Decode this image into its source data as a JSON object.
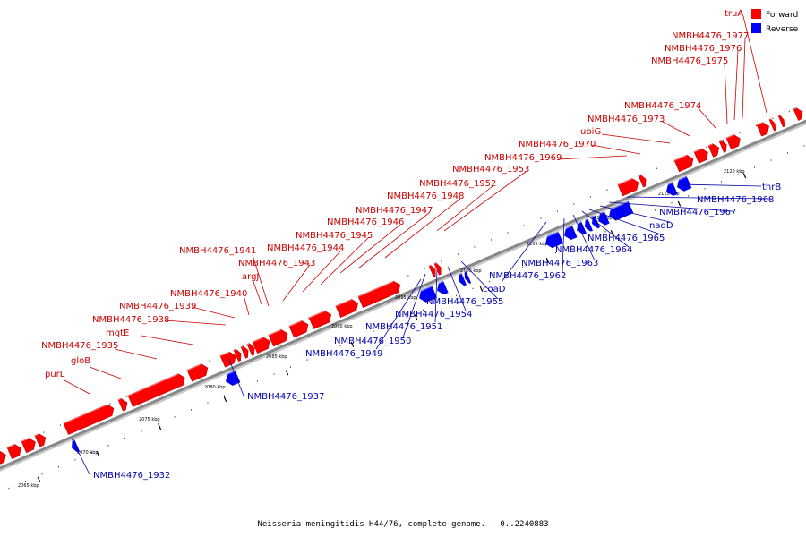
{
  "title": "Neisseria meningitidis H44/76, complete genome. - 0..2240883",
  "legend": [
    {
      "label": "Forward",
      "color": "#ff0000"
    },
    {
      "label": "Reverse",
      "color": "#0000ff"
    }
  ],
  "colors": {
    "forward": "#ff0000",
    "reverse": "#0000ff",
    "backbone": "#888888"
  },
  "ticks": [
    {
      "label": "2065 kbp"
    },
    {
      "label": "2070 kbp"
    },
    {
      "label": "2075 kbp"
    },
    {
      "label": "2080 kbp"
    },
    {
      "label": "2085 kbp"
    },
    {
      "label": "2090 kbp"
    },
    {
      "label": "2095 kbp"
    },
    {
      "label": "2100 kbp"
    },
    {
      "label": "2105 kbp"
    },
    {
      "label": "2110 kbp"
    },
    {
      "label": "2115 kbp"
    },
    {
      "label": "2120 kbp"
    }
  ],
  "forward_genes": [
    {
      "name": "purL"
    },
    {
      "name": "gloB"
    },
    {
      "name": "NMBH4476_1935"
    },
    {
      "name": "mgtE"
    },
    {
      "name": "NMBH4476_1938"
    },
    {
      "name": "NMBH4476_1939"
    },
    {
      "name": "NMBH4476_1940"
    },
    {
      "name": "argJ"
    },
    {
      "name": "NMBH4476_1941"
    },
    {
      "name": "NMBH4476_1943"
    },
    {
      "name": "NMBH4476_1944"
    },
    {
      "name": "NMBH4476_1945"
    },
    {
      "name": "NMBH4476_1946"
    },
    {
      "name": "NMBH4476_1947"
    },
    {
      "name": "NMBH4476_1948"
    },
    {
      "name": "NMBH4476_1952"
    },
    {
      "name": "NMBH4476_1953"
    },
    {
      "name": "NMBH4476_1969"
    },
    {
      "name": "NMBH4476_1970"
    },
    {
      "name": "ubiG"
    },
    {
      "name": "NMBH4476_1973"
    },
    {
      "name": "NMBH4476_1974"
    },
    {
      "name": "NMBH4476_1975"
    },
    {
      "name": "NMBH4476_1976"
    },
    {
      "name": "NMBH4476_1977"
    },
    {
      "name": "truA"
    }
  ],
  "reverse_genes": [
    {
      "name": "NMBH4476_1932"
    },
    {
      "name": "NMBH4476_1937"
    },
    {
      "name": "NMBH4476_1949"
    },
    {
      "name": "NMBH4476_1950"
    },
    {
      "name": "NMBH4476_1951"
    },
    {
      "name": "NMBH4476_1954"
    },
    {
      "name": "NMBH4476_1955"
    },
    {
      "name": "coaD"
    },
    {
      "name": "NMBH4476_1962"
    },
    {
      "name": "NMBH4476_1963"
    },
    {
      "name": "NMBH4476_1964"
    },
    {
      "name": "NMBH4476_1965"
    },
    {
      "name": "nadD"
    },
    {
      "name": "NMBH4476_1967"
    },
    {
      "name": "NMBH4476_1968"
    },
    {
      "name": "thrB"
    }
  ]
}
